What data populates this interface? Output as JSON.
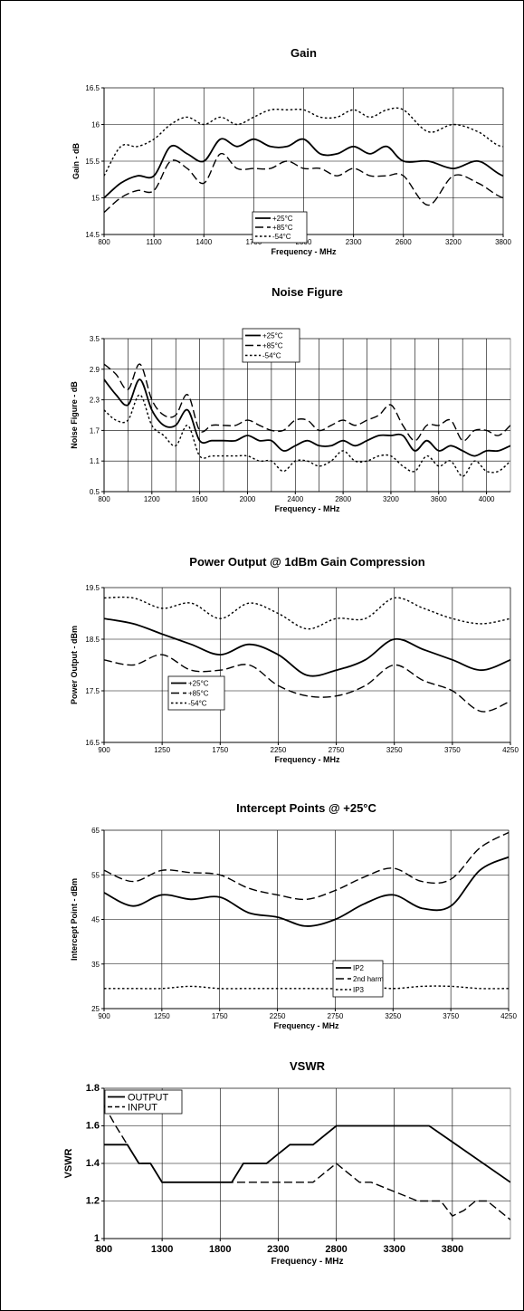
{
  "chart_data": [
    {
      "type": "line",
      "title": "Gain",
      "xlabel": "Frequency - MHz",
      "ylabel": "Gain - dB",
      "xlim": [
        800,
        4200
      ],
      "ylim": [
        14.5,
        16.5
      ],
      "xticks": [
        800,
        1100,
        1400,
        1700,
        2000,
        2300,
        2600,
        3200,
        3800
      ],
      "xtick_labels": [
        "800",
        "1100",
        "1400",
        "1700",
        "2000",
        "2300",
        "2600",
        "3200",
        "3800"
      ],
      "x_spacing": "category",
      "yticks": [
        14.5,
        15,
        15.5,
        16,
        16.5
      ],
      "ytick_labels": [
        "14.5",
        "15",
        "15.5",
        "16",
        "16.5"
      ],
      "grid": true,
      "legend_position": "bottom-center",
      "series": [
        {
          "name": "+25°C",
          "style": "solid",
          "x": [
            800,
            900,
            1000,
            1100,
            1200,
            1300,
            1400,
            1500,
            1600,
            1700,
            1800,
            1900,
            2000,
            2100,
            2200,
            2300,
            2400,
            2500,
            2600,
            2900,
            3200,
            3500,
            3800,
            4100,
            4200
          ],
          "y": [
            15.0,
            15.2,
            15.3,
            15.3,
            15.7,
            15.6,
            15.5,
            15.8,
            15.7,
            15.8,
            15.7,
            15.7,
            15.8,
            15.6,
            15.6,
            15.7,
            15.6,
            15.7,
            15.5,
            15.5,
            15.4,
            15.5,
            15.3,
            15.3,
            15.5
          ]
        },
        {
          "name": "+85°C",
          "style": "dashed",
          "x": [
            800,
            900,
            1000,
            1100,
            1200,
            1300,
            1400,
            1500,
            1600,
            1700,
            1800,
            1900,
            2000,
            2100,
            2200,
            2300,
            2400,
            2500,
            2600,
            2900,
            3200,
            3500,
            3800,
            4100,
            4200
          ],
          "y": [
            14.8,
            15.0,
            15.1,
            15.1,
            15.5,
            15.4,
            15.2,
            15.6,
            15.4,
            15.4,
            15.4,
            15.5,
            15.4,
            15.4,
            15.3,
            15.4,
            15.3,
            15.3,
            15.3,
            14.9,
            15.3,
            15.2,
            15.0,
            15.0,
            15.2
          ]
        },
        {
          "name": "-54°C",
          "style": "dotted",
          "x": [
            800,
            900,
            1000,
            1100,
            1200,
            1300,
            1400,
            1500,
            1600,
            1700,
            1800,
            1900,
            2000,
            2100,
            2200,
            2300,
            2400,
            2500,
            2600,
            2900,
            3200,
            3500,
            3800,
            4100,
            4200
          ],
          "y": [
            15.3,
            15.7,
            15.7,
            15.8,
            16.0,
            16.1,
            16.0,
            16.1,
            16.0,
            16.1,
            16.2,
            16.2,
            16.2,
            16.1,
            16.1,
            16.2,
            16.1,
            16.2,
            16.2,
            15.9,
            16.0,
            15.9,
            15.7,
            15.9,
            16.1
          ]
        }
      ]
    },
    {
      "type": "line",
      "title": "Noise Figure",
      "xlabel": "Frequency - MHz",
      "ylabel": "Noise Figure - dB",
      "xlim": [
        800,
        4200
      ],
      "ylim": [
        0.5,
        3.5
      ],
      "xticks": [
        800,
        1200,
        1600,
        2000,
        2400,
        2800,
        3200,
        3600,
        4000
      ],
      "xtick_labels": [
        "800",
        "1200",
        "1600",
        "2000",
        "2400",
        "2800",
        "3200",
        "3600",
        "4000"
      ],
      "yticks": [
        0.5,
        1.1,
        1.7,
        2.3,
        2.9,
        3.5
      ],
      "ytick_labels": [
        "0.5",
        "1.1",
        "1.7",
        "2.3",
        "2.9",
        "3.5"
      ],
      "grid": true,
      "legend_position": "top-center",
      "series": [
        {
          "name": "+25°C",
          "style": "solid",
          "x": [
            800,
            900,
            1000,
            1100,
            1200,
            1300,
            1400,
            1500,
            1600,
            1700,
            1800,
            1900,
            2000,
            2100,
            2200,
            2300,
            2400,
            2500,
            2600,
            2700,
            2800,
            2900,
            3000,
            3100,
            3200,
            3300,
            3400,
            3500,
            3600,
            3700,
            3800,
            3900,
            4000,
            4100,
            4200
          ],
          "y": [
            2.7,
            2.4,
            2.2,
            2.7,
            2.1,
            1.8,
            1.8,
            2.1,
            1.5,
            1.5,
            1.5,
            1.5,
            1.6,
            1.5,
            1.5,
            1.3,
            1.4,
            1.5,
            1.4,
            1.4,
            1.5,
            1.4,
            1.5,
            1.6,
            1.6,
            1.6,
            1.3,
            1.5,
            1.3,
            1.4,
            1.3,
            1.2,
            1.3,
            1.3,
            1.4
          ]
        },
        {
          "name": "+85°C",
          "style": "dashed",
          "x": [
            800,
            900,
            1000,
            1100,
            1200,
            1300,
            1400,
            1500,
            1600,
            1700,
            1800,
            1900,
            2000,
            2100,
            2200,
            2300,
            2400,
            2500,
            2600,
            2700,
            2800,
            2900,
            3000,
            3100,
            3200,
            3300,
            3400,
            3500,
            3600,
            3700,
            3800,
            3900,
            4000,
            4100,
            4200
          ],
          "y": [
            3.0,
            2.8,
            2.5,
            3.0,
            2.3,
            2.0,
            2.0,
            2.4,
            1.7,
            1.8,
            1.8,
            1.8,
            1.9,
            1.8,
            1.7,
            1.7,
            1.9,
            1.9,
            1.7,
            1.8,
            1.9,
            1.8,
            1.9,
            2.0,
            2.2,
            1.8,
            1.5,
            1.8,
            1.8,
            1.9,
            1.5,
            1.7,
            1.7,
            1.6,
            1.8
          ]
        },
        {
          "name": "-54°C",
          "style": "dotted",
          "x": [
            800,
            900,
            1000,
            1100,
            1200,
            1300,
            1400,
            1500,
            1600,
            1700,
            1800,
            1900,
            2000,
            2100,
            2200,
            2300,
            2400,
            2500,
            2600,
            2700,
            2800,
            2900,
            3000,
            3100,
            3200,
            3300,
            3400,
            3500,
            3600,
            3700,
            3800,
            3900,
            4000,
            4100,
            4200
          ],
          "y": [
            2.1,
            1.9,
            1.9,
            2.4,
            1.8,
            1.6,
            1.4,
            1.8,
            1.2,
            1.2,
            1.2,
            1.2,
            1.2,
            1.1,
            1.1,
            0.9,
            1.1,
            1.1,
            1.0,
            1.1,
            1.3,
            1.1,
            1.1,
            1.2,
            1.2,
            1.0,
            0.9,
            1.2,
            1.0,
            1.1,
            0.8,
            1.1,
            0.9,
            0.9,
            1.1
          ]
        }
      ]
    },
    {
      "type": "line",
      "title": "Power Output @ 1dBm Gain Compression",
      "xlabel": "Frequency - MHz",
      "ylabel": "Power Output - dBm",
      "xlim": [
        900,
        4250
      ],
      "ylim": [
        16.5,
        19.5
      ],
      "xticks": [
        900,
        1250,
        1750,
        2250,
        2750,
        3250,
        3750,
        4250
      ],
      "xtick_labels": [
        "900",
        "1250",
        "1750",
        "2250",
        "2750",
        "3250",
        "3750",
        "4250"
      ],
      "x_spacing": "category",
      "yticks": [
        16.5,
        17.5,
        18.5,
        19.5
      ],
      "ytick_labels": [
        "16.5",
        "17.5",
        "18.5",
        "19.5"
      ],
      "grid": true,
      "legend_position": "bottom-left",
      "series": [
        {
          "name": "+25°C",
          "style": "solid",
          "x": [
            900,
            1075,
            1250,
            1500,
            1750,
            2000,
            2250,
            2500,
            2750,
            3000,
            3250,
            3500,
            3750,
            4000,
            4250
          ],
          "y": [
            18.9,
            18.8,
            18.6,
            18.4,
            18.2,
            18.4,
            18.2,
            17.8,
            17.9,
            18.1,
            18.5,
            18.3,
            18.1,
            17.9,
            18.1
          ]
        },
        {
          "name": "+85°C",
          "style": "dashed",
          "x": [
            900,
            1075,
            1250,
            1500,
            1750,
            2000,
            2250,
            2500,
            2750,
            3000,
            3250,
            3500,
            3750,
            4000,
            4250
          ],
          "y": [
            18.1,
            18.0,
            18.2,
            17.9,
            17.9,
            18.0,
            17.6,
            17.4,
            17.4,
            17.6,
            18.0,
            17.7,
            17.5,
            17.1,
            17.3
          ]
        },
        {
          "name": "-54°C",
          "style": "dotted",
          "x": [
            900,
            1075,
            1250,
            1500,
            1750,
            2000,
            2250,
            2500,
            2750,
            3000,
            3250,
            3500,
            3750,
            4000,
            4250
          ],
          "y": [
            19.3,
            19.3,
            19.1,
            19.2,
            18.9,
            19.2,
            19.0,
            18.7,
            18.9,
            18.9,
            19.3,
            19.1,
            18.9,
            18.8,
            18.9
          ]
        }
      ]
    },
    {
      "type": "line",
      "title": "Intercept Points @ +25°C",
      "xlabel": "Frequency - MHz",
      "ylabel": "Intercept Point - dBm",
      "xlim": [
        900,
        4250
      ],
      "ylim": [
        25,
        65
      ],
      "xticks": [
        900,
        1250,
        1750,
        2250,
        2750,
        3250,
        3750,
        4250
      ],
      "xtick_labels": [
        "900",
        "1250",
        "1750",
        "2250",
        "2750",
        "3250",
        "3750",
        "4250"
      ],
      "x_spacing": "category",
      "yticks": [
        25,
        35,
        45,
        55,
        65
      ],
      "ytick_labels": [
        "25",
        "35",
        "45",
        "55",
        "65"
      ],
      "grid": true,
      "legend_position": "bottom-right",
      "series": [
        {
          "name": "IP2",
          "style": "solid",
          "x": [
            900,
            1075,
            1250,
            1500,
            1750,
            2000,
            2250,
            2500,
            2750,
            3000,
            3250,
            3500,
            3750,
            4000,
            4250
          ],
          "y": [
            51,
            48,
            50.5,
            49.5,
            50,
            46.5,
            45.5,
            43.5,
            45,
            48.5,
            50.5,
            47.5,
            48,
            56,
            59
          ]
        },
        {
          "name": "2nd harm",
          "style": "dashed",
          "x": [
            900,
            1075,
            1250,
            1500,
            1750,
            2000,
            2250,
            2500,
            2750,
            3000,
            3250,
            3500,
            3750,
            4000,
            4250
          ],
          "y": [
            56,
            53.5,
            56,
            55.5,
            55,
            52,
            50.5,
            49.5,
            51.5,
            54.5,
            56.5,
            53.5,
            54,
            61,
            64.5
          ]
        },
        {
          "name": "IP3",
          "style": "dotted",
          "x": [
            900,
            1075,
            1250,
            1500,
            1750,
            2000,
            2250,
            2500,
            2750,
            3000,
            3250,
            3500,
            3750,
            4000,
            4250
          ],
          "y": [
            29.5,
            29.5,
            29.5,
            30,
            29.5,
            29.5,
            29.5,
            29.5,
            29.5,
            30,
            29.5,
            30,
            30,
            29.5,
            29.5
          ]
        }
      ]
    },
    {
      "type": "line",
      "title": "VSWR",
      "xlabel": "Frequency - MHz",
      "ylabel": "VSWR",
      "xlim": [
        800,
        4300
      ],
      "ylim": [
        1,
        1.8
      ],
      "xticks": [
        800,
        1300,
        1800,
        2300,
        2800,
        3300,
        3800
      ],
      "xtick_labels": [
        "800",
        "1300",
        "1800",
        "2300",
        "2800",
        "3300",
        "3800"
      ],
      "yticks": [
        1,
        1.2,
        1.4,
        1.6,
        1.8
      ],
      "ytick_labels": [
        "1",
        "1.2",
        "1.4",
        "1.6",
        "1.8"
      ],
      "grid": true,
      "legend_position": "top-left",
      "series": [
        {
          "name": "OUTPUT",
          "style": "solid",
          "x": [
            800,
            1000,
            1100,
            1200,
            1300,
            1500,
            1800,
            1900,
            2000,
            2200,
            2300,
            2400,
            2500,
            2600,
            2800,
            3000,
            3300,
            3500,
            3600,
            4300
          ],
          "y": [
            1.5,
            1.5,
            1.4,
            1.4,
            1.3,
            1.3,
            1.3,
            1.3,
            1.4,
            1.4,
            1.45,
            1.5,
            1.5,
            1.5,
            1.6,
            1.6,
            1.6,
            1.6,
            1.6,
            1.3
          ]
        },
        {
          "name": "INPUT",
          "style": "dashed",
          "x": [
            800,
            900,
            1000,
            1100,
            1200,
            1300,
            1500,
            1800,
            2000,
            2200,
            2400,
            2600,
            2700,
            2800,
            2900,
            3000,
            3100,
            3300,
            3500,
            3700,
            3800,
            3900,
            4000,
            4100,
            4200,
            4300
          ],
          "y": [
            1.71,
            1.6,
            1.5,
            1.4,
            1.4,
            1.3,
            1.3,
            1.3,
            1.3,
            1.3,
            1.3,
            1.3,
            1.35,
            1.4,
            1.35,
            1.3,
            1.3,
            1.25,
            1.2,
            1.2,
            1.12,
            1.15,
            1.2,
            1.2,
            1.15,
            1.1
          ]
        }
      ]
    }
  ]
}
